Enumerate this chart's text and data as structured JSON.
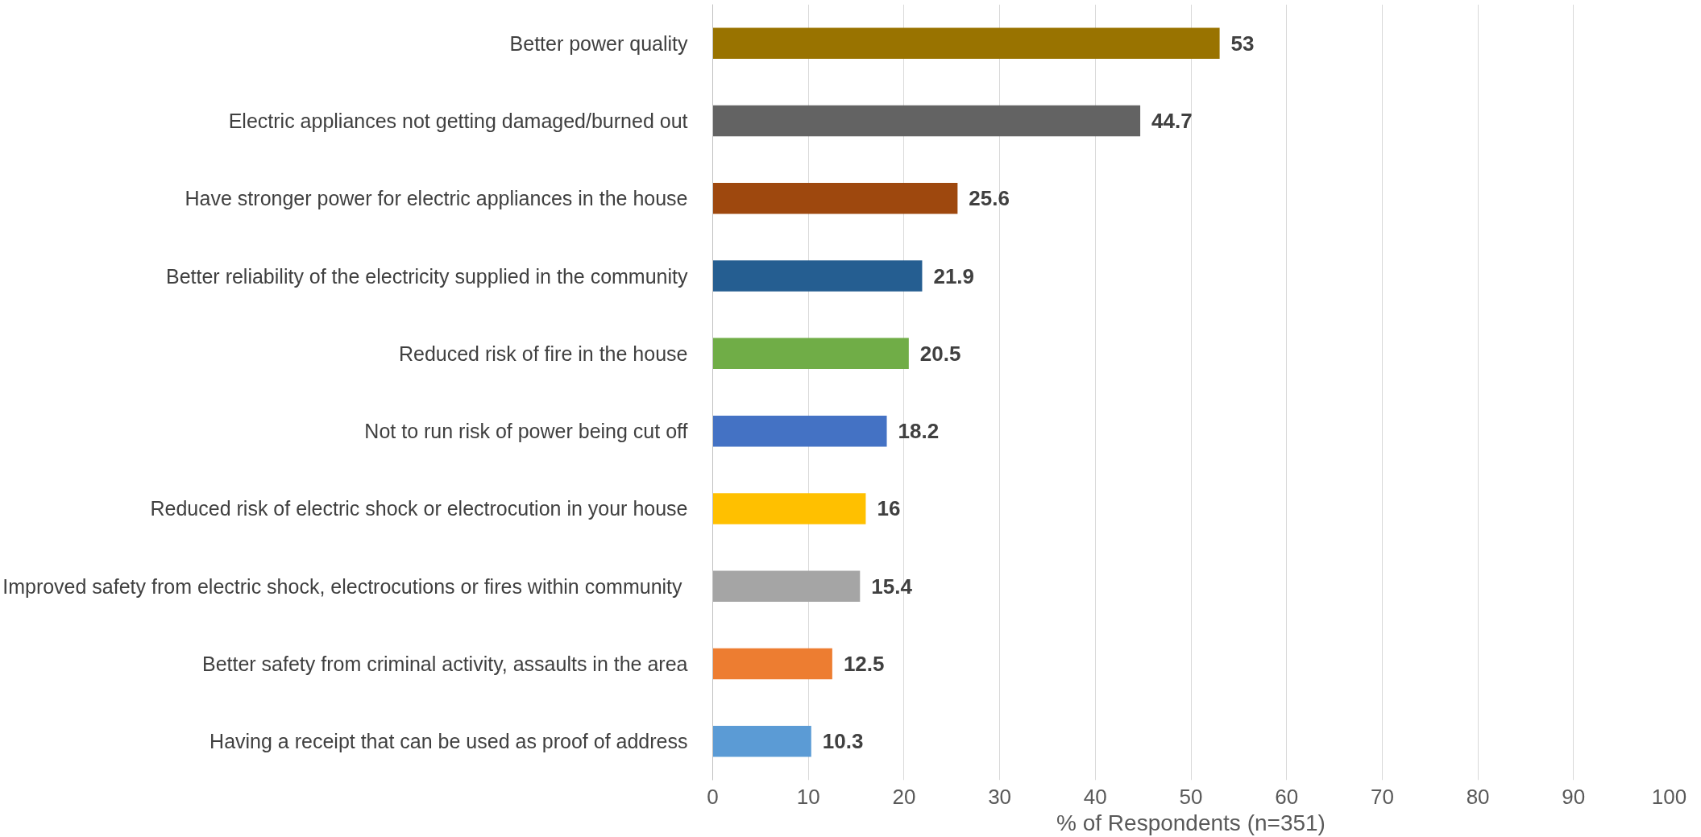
{
  "chart_data": {
    "type": "bar",
    "orientation": "horizontal",
    "xlabel": "% of Respondents (n=351)",
    "categories": [
      "Better power quality",
      "Electric appliances not getting damaged/burned out",
      "Have stronger power for electric appliances in the house",
      "Better reliability of the electricity supplied in the community",
      "Reduced risk of fire in the house",
      "Not to run risk of power being cut off",
      "Reduced risk of electric shock or electrocution in your house",
      "Improved safety from electric shock, electrocutions or fires  within community",
      "Better safety from criminal activity, assaults in the area",
      "Having a receipt that can be used as proof of address"
    ],
    "values": [
      53,
      44.7,
      25.6,
      21.9,
      20.5,
      18.2,
      16,
      15.4,
      12.5,
      10.3
    ],
    "colors": [
      "#997300",
      "#636363",
      "#9e480e",
      "#255e91",
      "#70ad47",
      "#4472c4",
      "#ffc000",
      "#a5a5a5",
      "#ed7d31",
      "#5b9bd5"
    ],
    "xlim": [
      0,
      100
    ],
    "xticks": [
      0,
      10,
      20,
      30,
      40,
      50,
      60,
      70,
      80,
      90,
      100
    ],
    "grid": "x",
    "data_labels": true
  }
}
